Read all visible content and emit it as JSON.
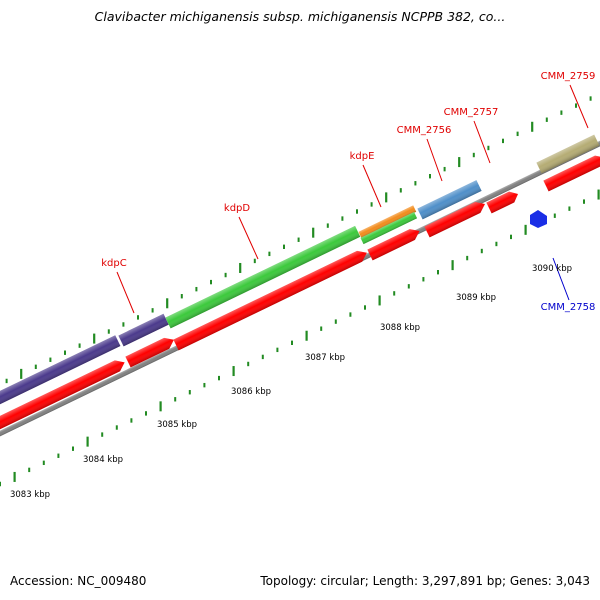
{
  "title": "Clavibacter michiganensis subsp. michiganensis NCPPB 382, co...",
  "footer": {
    "accession": "Accession: NC_009480",
    "summary": "Topology: circular; Length: 3,297,891 bp; Genes: 3,043"
  },
  "colors": {
    "forward_label": "#e00000",
    "reverse_label": "#0000cc",
    "cds": "#ff0000",
    "tick": "#228b22",
    "backbone": "#808080"
  },
  "gene_labels": [
    {
      "text": "kdpC",
      "strand": "forward"
    },
    {
      "text": "kdpD",
      "strand": "forward"
    },
    {
      "text": "kdpE",
      "strand": "forward"
    },
    {
      "text": "CMM_2756",
      "strand": "forward"
    },
    {
      "text": "CMM_2757",
      "strand": "forward"
    },
    {
      "text": "CMM_2759",
      "strand": "forward"
    },
    {
      "text": "CMM_2758",
      "strand": "reverse"
    }
  ],
  "scale_labels": [
    "3083 kbp",
    "3084 kbp",
    "3085 kbp",
    "3086 kbp",
    "3087 kbp",
    "3088 kbp",
    "3089 kbp",
    "3090 kbp"
  ]
}
